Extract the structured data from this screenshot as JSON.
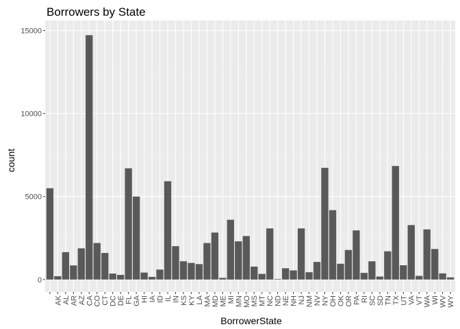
{
  "chart_data": {
    "type": "bar",
    "title": "Borrowers by State",
    "xlabel": "BorrowerState",
    "ylabel": "count",
    "ylim": [
      -750,
      15600
    ],
    "yticks": [
      0,
      5000,
      10000,
      15000
    ],
    "grid": true,
    "legend": "none",
    "categories": [
      "",
      "AK",
      "AL",
      "AR",
      "AZ",
      "CA",
      "CO",
      "CT",
      "DC",
      "DE",
      "FL",
      "GA",
      "HI",
      "IA",
      "ID",
      "IL",
      "IN",
      "KS",
      "KY",
      "LA",
      "MA",
      "MD",
      "ME",
      "MI",
      "MN",
      "MO",
      "MS",
      "MT",
      "NC",
      "ND",
      "NE",
      "NH",
      "NJ",
      "NM",
      "NV",
      "NY",
      "OH",
      "OK",
      "OR",
      "PA",
      "RI",
      "SC",
      "SD",
      "TN",
      "TX",
      "UT",
      "VA",
      "VT",
      "WA",
      "WI",
      "WV",
      "WY"
    ],
    "values": [
      5500,
      200,
      1650,
      850,
      1880,
      14720,
      2200,
      1600,
      360,
      280,
      6700,
      5000,
      420,
      160,
      600,
      5920,
      2010,
      1100,
      1000,
      930,
      2200,
      2830,
      100,
      3600,
      2300,
      2620,
      780,
      340,
      3080,
      30,
      680,
      550,
      3080,
      440,
      1060,
      6730,
      4180,
      950,
      1780,
      2960,
      400,
      1100,
      180,
      1700,
      6840,
      860,
      3280,
      220,
      3020,
      1840,
      370,
      130
    ]
  },
  "colors": {
    "panel": "#ebebeb",
    "grid_major": "#ffffff",
    "grid_minor": "#f2f2f2",
    "bar": "#595959",
    "tick": "#333333"
  }
}
